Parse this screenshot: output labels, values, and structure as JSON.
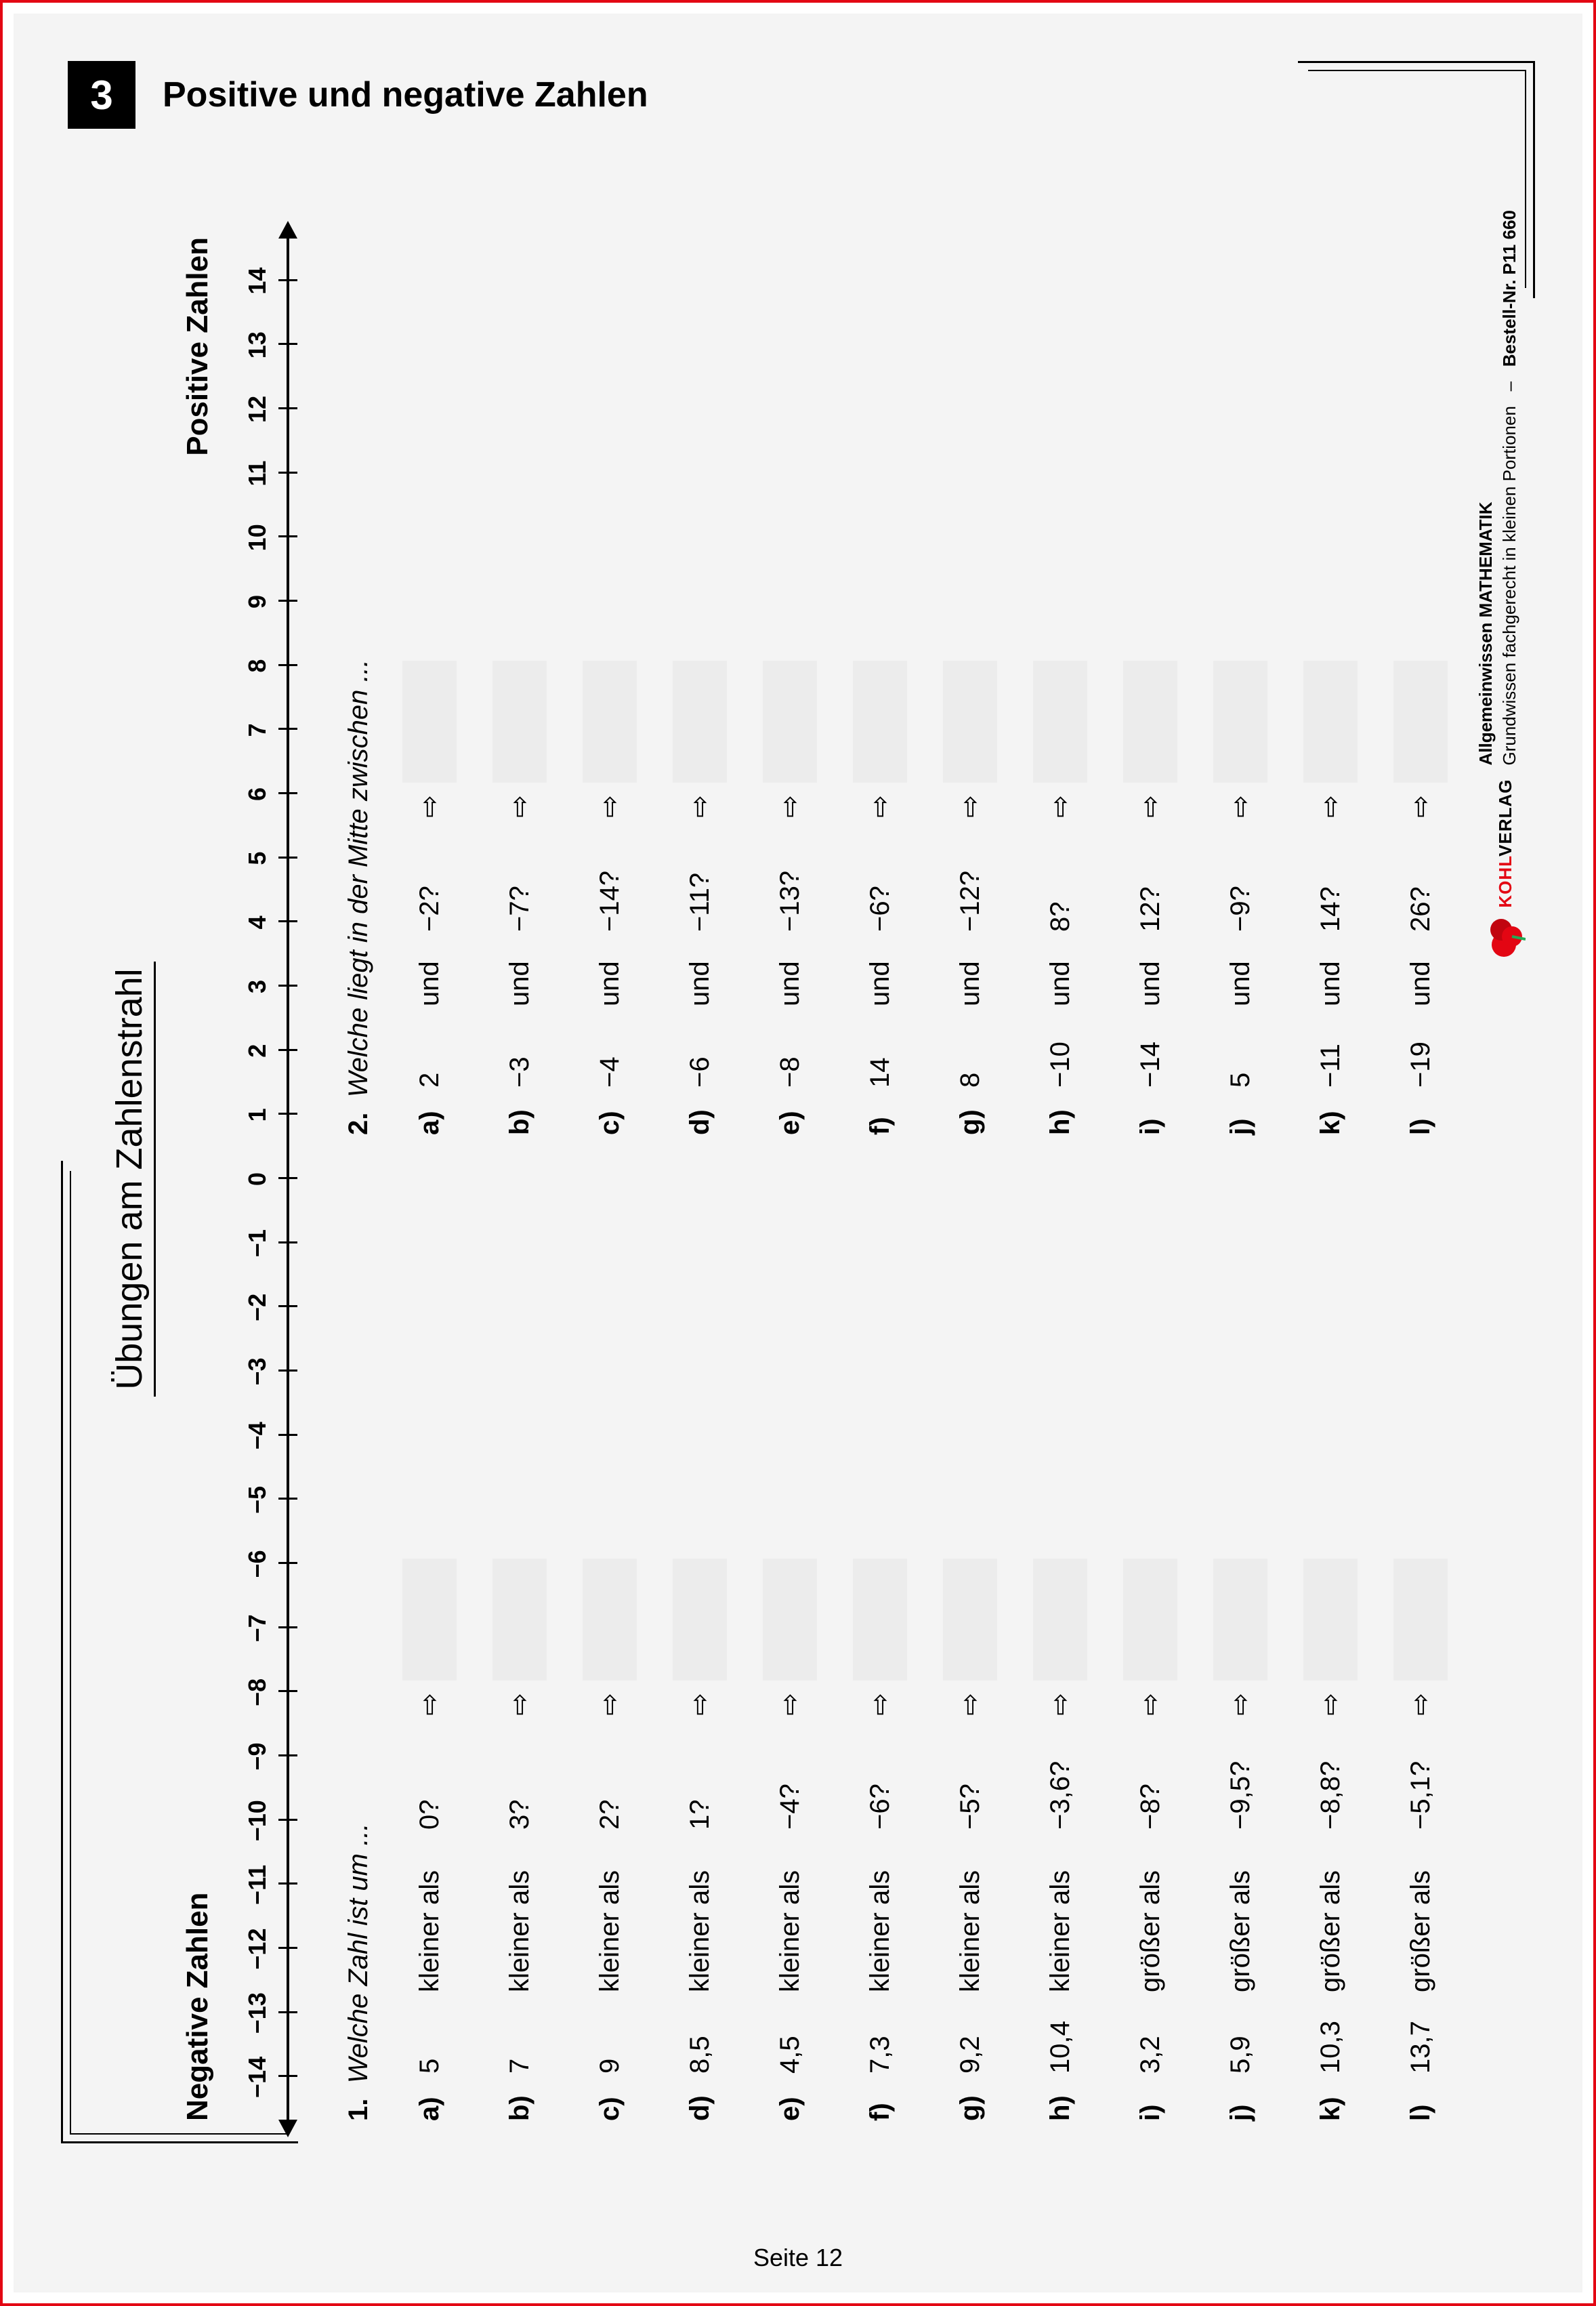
{
  "colors": {
    "frame": "#e30613",
    "page_bg": "#f4f4f4",
    "text": "#000000",
    "answer_bg": "#ececec",
    "badge_bg": "#000000",
    "badge_fg": "#ffffff"
  },
  "typography": {
    "base_family": "Arial, Helvetica, sans-serif",
    "title_size_pt": 40,
    "body_size_pt": 30,
    "tick_size_pt": 27
  },
  "header": {
    "chapter_number": "3",
    "chapter_title": "Positive und negative Zahlen"
  },
  "sheet": {
    "title": "Übungen am Zahlenstrahl",
    "neg_label": "Negative Zahlen",
    "pos_label": "Positive Zahlen"
  },
  "numberline": {
    "min": -14,
    "max": 14,
    "step": 1,
    "ticks": [
      "−14",
      "−13",
      "−12",
      "−11",
      "−10",
      "−9",
      "−8",
      "−7",
      "−6",
      "−5",
      "−4",
      "−3",
      "−2",
      "−1",
      "0",
      "1",
      "2",
      "3",
      "4",
      "5",
      "6",
      "7",
      "8",
      "9",
      "10",
      "11",
      "12",
      "13",
      "14"
    ]
  },
  "exercise1": {
    "number": "1.",
    "prompt": "Welche Zahl ist um ...",
    "rows": [
      {
        "label": "a)",
        "n": "5",
        "rel": "kleiner als",
        "m": "0?"
      },
      {
        "label": "b)",
        "n": "7",
        "rel": "kleiner als",
        "m": "3?"
      },
      {
        "label": "c)",
        "n": "9",
        "rel": "kleiner als",
        "m": "2?"
      },
      {
        "label": "d)",
        "n": "8,5",
        "rel": "kleiner als",
        "m": "1?"
      },
      {
        "label": "e)",
        "n": "4,5",
        "rel": "kleiner als",
        "m": "−4?"
      },
      {
        "label": "f)",
        "n": "7,3",
        "rel": "kleiner als",
        "m": "−6?"
      },
      {
        "label": "g)",
        "n": "9,2",
        "rel": "kleiner als",
        "m": "−5?"
      },
      {
        "label": "h)",
        "n": "10,4",
        "rel": "kleiner als",
        "m": "−3,6?"
      },
      {
        "label": "i)",
        "n": "3,2",
        "rel": "größer als",
        "m": "−8?"
      },
      {
        "label": "j)",
        "n": "5,9",
        "rel": "größer als",
        "m": "−9,5?"
      },
      {
        "label": "k)",
        "n": "10,3",
        "rel": "größer als",
        "m": "−8,8?"
      },
      {
        "label": "l)",
        "n": "13,7",
        "rel": "größer als",
        "m": "−5,1?"
      }
    ]
  },
  "exercise2": {
    "number": "2.",
    "prompt": "Welche liegt in der Mitte zwischen ...",
    "und": "und",
    "rows": [
      {
        "label": "a)",
        "a": "2",
        "b": "−2?"
      },
      {
        "label": "b)",
        "a": "−3",
        "b": "−7?"
      },
      {
        "label": "c)",
        "a": "−4",
        "b": "−14?"
      },
      {
        "label": "d)",
        "a": "−6",
        "b": "−11?"
      },
      {
        "label": "e)",
        "a": "−8",
        "b": "−13?"
      },
      {
        "label": "f)",
        "a": "14",
        "b": "−6?"
      },
      {
        "label": "g)",
        "a": "8",
        "b": "−12?"
      },
      {
        "label": "h)",
        "a": "−10",
        "b": "8?"
      },
      {
        "label": "i)",
        "a": "−14",
        "b": "12?"
      },
      {
        "label": "j)",
        "a": "5",
        "b": "−9?"
      },
      {
        "label": "k)",
        "a": "−11",
        "b": "14?"
      },
      {
        "label": "l)",
        "a": "−19",
        "b": "26?"
      }
    ]
  },
  "arrow_glyph": "⇨",
  "publisher": {
    "brand_red": "KOHL",
    "brand_black": "VERLAG",
    "line1": "Allgemeinwissen  MATHEMATIK",
    "line2": "Grundwissen fachgerecht in kleinen Portionen",
    "sep": "–",
    "order": "Bestell-Nr. P11 660"
  },
  "page_footer": "Seite 12"
}
